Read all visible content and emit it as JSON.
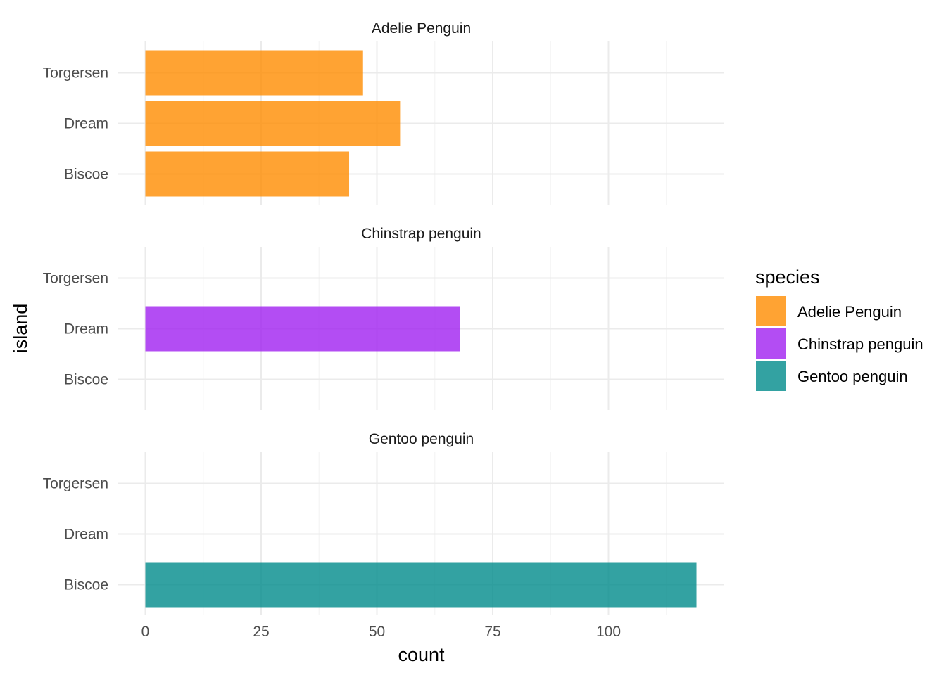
{
  "chart_data": {
    "type": "bar",
    "orientation": "horizontal",
    "facet_by": "species",
    "categories": [
      "Biscoe",
      "Dream",
      "Torgersen"
    ],
    "panels": [
      {
        "title": "Adelie Penguin",
        "color": "#FF8C00",
        "values": {
          "Biscoe": 44,
          "Dream": 55,
          "Torgersen": 47
        }
      },
      {
        "title": "Chinstrap penguin",
        "color": "#A020F0",
        "values": {
          "Biscoe": 0,
          "Dream": 68,
          "Torgersen": 0
        }
      },
      {
        "title": "Gentoo penguin",
        "color": "#008B8B",
        "values": {
          "Biscoe": 119,
          "Dream": 0,
          "Torgersen": 0
        }
      }
    ],
    "xlabel": "count",
    "ylabel": "island",
    "xlim": [
      0,
      125
    ],
    "x_ticks": [
      0,
      25,
      50,
      75,
      100
    ],
    "grid": true,
    "legend": {
      "title": "species",
      "position": "right",
      "items": [
        {
          "label": "Adelie Penguin",
          "color": "#FF8C00"
        },
        {
          "label": "Chinstrap penguin",
          "color": "#A020F0"
        },
        {
          "label": "Gentoo penguin",
          "color": "#008B8B"
        }
      ]
    },
    "bar_opacity": 0.8
  }
}
